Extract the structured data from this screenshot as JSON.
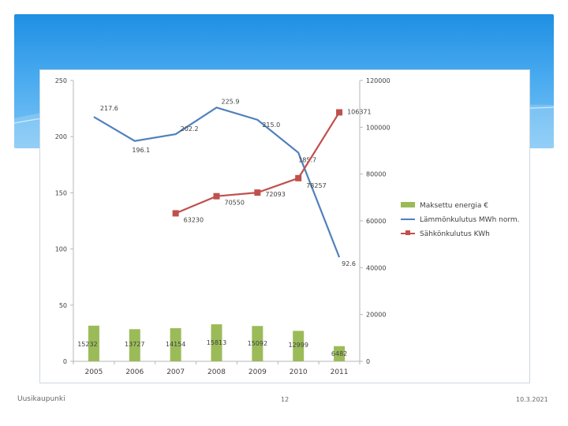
{
  "colors": {
    "header_top": "#1f8fe3",
    "header_bottom": "#7cc5f5",
    "bar": "#9bbb59",
    "line_heat": "#4f81bd",
    "line_elec": "#c0504d",
    "axis": "#b7b7b7",
    "text": "#404040"
  },
  "footer": {
    "left": "Uusikaupunki",
    "center": "12",
    "right": "10.3.2021"
  },
  "chart_data": {
    "type": "bar+line",
    "categories": [
      "2005",
      "2006",
      "2007",
      "2008",
      "2009",
      "2010",
      "2011"
    ],
    "left_axis": {
      "min": 0,
      "max": 250,
      "ticks": [
        "0",
        "50",
        "100",
        "150",
        "200",
        "250"
      ]
    },
    "right_axis": {
      "min": 0,
      "max": 120000,
      "ticks": [
        "0",
        "20000",
        "40000",
        "60000",
        "80000",
        "100000",
        "120000"
      ]
    },
    "series": [
      {
        "name": "Maksettu energia €",
        "type": "bar",
        "axis": "right",
        "color": "#9bbb59",
        "values": [
          15232,
          13727,
          14154,
          15813,
          15092,
          12999,
          6482
        ],
        "labels": [
          "15232",
          "13727",
          "14154",
          "15813",
          "15092",
          "12999",
          "6482"
        ]
      },
      {
        "name": "Lämmönkulutus MWh norm.",
        "type": "line",
        "axis": "left",
        "color": "#4f81bd",
        "values": [
          217.6,
          196.1,
          202.2,
          225.9,
          215.0,
          185.7,
          92.6
        ],
        "labels": [
          "217.6",
          "196.1",
          "202.2",
          "225.9",
          "215.0",
          "185.7",
          "92.6"
        ]
      },
      {
        "name": "Sähkönkulutus KWh",
        "type": "line",
        "axis": "right",
        "color": "#c0504d",
        "values": [
          null,
          null,
          63230,
          70550,
          72093,
          78257,
          106371
        ],
        "labels": [
          "",
          "",
          "63230",
          "70550",
          "72093",
          "78257",
          "106371"
        ]
      }
    ],
    "legend_position": "right",
    "grid": false
  }
}
